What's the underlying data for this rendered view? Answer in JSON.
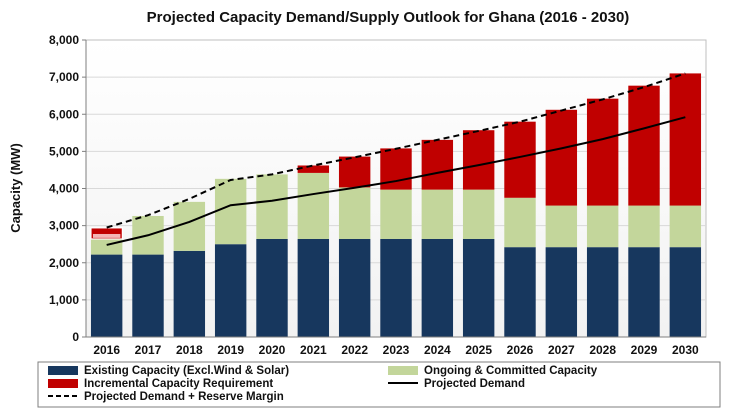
{
  "chart_data": {
    "type": "bar",
    "stacked": true,
    "title": "Projected Capacity Demand/Supply Outlook for Ghana (2016 - 2030)",
    "xlabel": "",
    "ylabel": "Capacity (MW)",
    "ylim": [
      0,
      8000
    ],
    "ytick_step": 1000,
    "ytick_labels": [
      "0",
      "1,000",
      "2,000",
      "3,000",
      "4,000",
      "5,000",
      "6,000",
      "7,000",
      "8,000"
    ],
    "grid": true,
    "legend_position": "bottom",
    "categories": [
      "2016",
      "2017",
      "2018",
      "2019",
      "2020",
      "2021",
      "2022",
      "2023",
      "2024",
      "2025",
      "2026",
      "2027",
      "2028",
      "2029",
      "2030"
    ],
    "series": [
      {
        "name": "Existing Capacity (Excl.Wind & Solar)",
        "kind": "bar",
        "color": "#17375E",
        "values": [
          2220,
          2220,
          2320,
          2500,
          2640,
          2640,
          2640,
          2640,
          2640,
          2640,
          2420,
          2420,
          2420,
          2420,
          2420
        ]
      },
      {
        "name": "Ongoing & Committed Capacity",
        "kind": "bar",
        "color": "#C3D69B",
        "values": [
          420,
          1040,
          1320,
          1760,
          1740,
          1780,
          1390,
          1330,
          1330,
          1330,
          1330,
          1120,
          1120,
          1120,
          1120
        ]
      },
      {
        "name": "Incremental Capacity Requirement",
        "kind": "bar",
        "color": "#C00000",
        "values": [
          300,
          0,
          0,
          0,
          0,
          200,
          830,
          1110,
          1340,
          1600,
          2050,
          2580,
          2880,
          3230,
          3560
        ]
      },
      {
        "name": "Projected Demand",
        "kind": "line",
        "style": "solid",
        "color": "#000000",
        "values": [
          2480,
          2740,
          3100,
          3550,
          3670,
          3850,
          4020,
          4200,
          4420,
          4630,
          4850,
          5080,
          5330,
          5620,
          5920
        ]
      },
      {
        "name": "Projected Demand + Reserve Margin",
        "kind": "line",
        "style": "dashed",
        "color": "#000000",
        "values": [
          2950,
          3280,
          3720,
          4230,
          4380,
          4620,
          4840,
          5070,
          5310,
          5550,
          5800,
          6100,
          6400,
          6730,
          7100
        ]
      }
    ],
    "legend_layout": [
      [
        "Existing Capacity (Excl.Wind & Solar)",
        "Ongoing & Committed Capacity"
      ],
      [
        "Incremental Capacity Requirement",
        "Projected Demand"
      ],
      [
        "Projected Demand + Reserve Margin"
      ]
    ]
  }
}
